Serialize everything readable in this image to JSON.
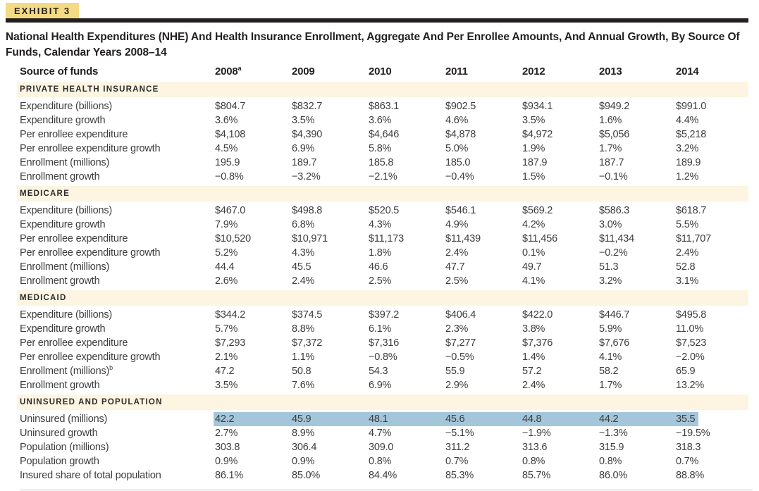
{
  "exhibit_label": "EXHIBIT 3",
  "title": "National Health Expenditures (NHE) And Health Insurance Enrollment, Aggregate And Per Enrollee Amounts, And Annual Growth, By Source Of Funds, Calendar Years 2008–14",
  "colors": {
    "badge_yellow": "#f4da83",
    "rule_black": "#231f20",
    "section_band_cream": "#fdf5e2",
    "row_highlight_blue": "#a4c6da"
  },
  "table": {
    "first_col_header": "Source of funds",
    "year_headers": [
      {
        "label": "2008",
        "sup": "a"
      },
      {
        "label": "2009",
        "sup": ""
      },
      {
        "label": "2010",
        "sup": ""
      },
      {
        "label": "2011",
        "sup": ""
      },
      {
        "label": "2012",
        "sup": ""
      },
      {
        "label": "2013",
        "sup": ""
      },
      {
        "label": "2014",
        "sup": ""
      }
    ],
    "sections": [
      {
        "name": "PRIVATE HEALTH INSURANCE",
        "rows": [
          {
            "label": "Expenditure (billions)",
            "sup": "",
            "highlight": false,
            "values": [
              "$804.7",
              "$832.7",
              "$863.1",
              "$902.5",
              "$934.1",
              "$949.2",
              "$991.0"
            ]
          },
          {
            "label": "Expenditure growth",
            "sup": "",
            "highlight": false,
            "values": [
              "3.6%",
              "3.5%",
              "3.6%",
              "4.6%",
              "3.5%",
              "1.6%",
              "4.4%"
            ]
          },
          {
            "label": "Per enrollee expenditure",
            "sup": "",
            "highlight": false,
            "values": [
              "$4,108",
              "$4,390",
              "$4,646",
              "$4,878",
              "$4,972",
              "$5,056",
              "$5,218"
            ]
          },
          {
            "label": "Per enrollee expenditure growth",
            "sup": "",
            "highlight": false,
            "values": [
              "4.5%",
              "6.9%",
              "5.8%",
              "5.0%",
              "1.9%",
              "1.7%",
              "3.2%"
            ]
          },
          {
            "label": "Enrollment (millions)",
            "sup": "",
            "highlight": false,
            "values": [
              "195.9",
              "189.7",
              "185.8",
              "185.0",
              "187.9",
              "187.7",
              "189.9"
            ]
          },
          {
            "label": "Enrollment growth",
            "sup": "",
            "highlight": false,
            "values": [
              "−0.8%",
              "−3.2%",
              "−2.1%",
              "−0.4%",
              "1.5%",
              "−0.1%",
              "1.2%"
            ]
          }
        ]
      },
      {
        "name": "MEDICARE",
        "rows": [
          {
            "label": "Expenditure (billions)",
            "sup": "",
            "highlight": false,
            "values": [
              "$467.0",
              "$498.8",
              "$520.5",
              "$546.1",
              "$569.2",
              "$586.3",
              "$618.7"
            ]
          },
          {
            "label": "Expenditure growth",
            "sup": "",
            "highlight": false,
            "values": [
              "7.9%",
              "6.8%",
              "4.3%",
              "4.9%",
              "4.2%",
              "3.0%",
              "5.5%"
            ]
          },
          {
            "label": "Per enrollee expenditure",
            "sup": "",
            "highlight": false,
            "values": [
              "$10,520",
              "$10,971",
              "$11,173",
              "$11,439",
              "$11,456",
              "$11,434",
              "$11,707"
            ]
          },
          {
            "label": "Per enrollee expenditure growth",
            "sup": "",
            "highlight": false,
            "values": [
              "5.2%",
              "4.3%",
              "1.8%",
              "2.4%",
              "0.1%",
              "−0.2%",
              "2.4%"
            ]
          },
          {
            "label": "Enrollment (millions)",
            "sup": "",
            "highlight": false,
            "values": [
              "44.4",
              "45.5",
              "46.6",
              "47.7",
              "49.7",
              "51.3",
              "52.8"
            ]
          },
          {
            "label": "Enrollment growth",
            "sup": "",
            "highlight": false,
            "values": [
              "2.6%",
              "2.4%",
              "2.5%",
              "2.5%",
              "4.1%",
              "3.2%",
              "3.1%"
            ]
          }
        ]
      },
      {
        "name": "MEDICAID",
        "rows": [
          {
            "label": "Expenditure (billions)",
            "sup": "",
            "highlight": false,
            "values": [
              "$344.2",
              "$374.5",
              "$397.2",
              "$406.4",
              "$422.0",
              "$446.7",
              "$495.8"
            ]
          },
          {
            "label": "Expenditure growth",
            "sup": "",
            "highlight": false,
            "values": [
              "5.7%",
              "8.8%",
              "6.1%",
              "2.3%",
              "3.8%",
              "5.9%",
              "11.0%"
            ]
          },
          {
            "label": "Per enrollee expenditure",
            "sup": "",
            "highlight": false,
            "values": [
              "$7,293",
              "$7,372",
              "$7,316",
              "$7,277",
              "$7,376",
              "$7,676",
              "$7,523"
            ]
          },
          {
            "label": "Per enrollee expenditure growth",
            "sup": "",
            "highlight": false,
            "values": [
              "2.1%",
              "1.1%",
              "−0.8%",
              "−0.5%",
              "1.4%",
              "4.1%",
              "−2.0%"
            ]
          },
          {
            "label": "Enrollment (millions)",
            "sup": "b",
            "highlight": false,
            "values": [
              "47.2",
              "50.8",
              "54.3",
              "55.9",
              "57.2",
              "58.2",
              "65.9"
            ]
          },
          {
            "label": "Enrollment growth",
            "sup": "",
            "highlight": false,
            "values": [
              "3.5%",
              "7.6%",
              "6.9%",
              "2.9%",
              "2.4%",
              "1.7%",
              "13.2%"
            ]
          }
        ]
      },
      {
        "name": "UNINSURED AND POPULATION",
        "rows": [
          {
            "label": "Uninsured (millions)",
            "sup": "",
            "highlight": true,
            "values": [
              "42.2",
              "45.9",
              "48.1",
              "45.6",
              "44.8",
              "44.2",
              "35.5"
            ]
          },
          {
            "label": "Uninsured growth",
            "sup": "",
            "highlight": false,
            "values": [
              "2.7%",
              "8.9%",
              "4.7%",
              "−5.1%",
              "−1.9%",
              "−1.3%",
              "−19.5%"
            ]
          },
          {
            "label": "Population (millions)",
            "sup": "",
            "highlight": false,
            "values": [
              "303.8",
              "306.4",
              "309.0",
              "311.2",
              "313.6",
              "315.9",
              "318.3"
            ]
          },
          {
            "label": "Population growth",
            "sup": "",
            "highlight": false,
            "values": [
              "0.9%",
              "0.9%",
              "0.8%",
              "0.7%",
              "0.8%",
              "0.8%",
              "0.7%"
            ]
          },
          {
            "label": "Insured share of total population",
            "sup": "",
            "highlight": false,
            "values": [
              "86.1%",
              "85.0%",
              "84.4%",
              "85.3%",
              "85.7%",
              "86.0%",
              "88.8%"
            ]
          }
        ]
      }
    ]
  }
}
